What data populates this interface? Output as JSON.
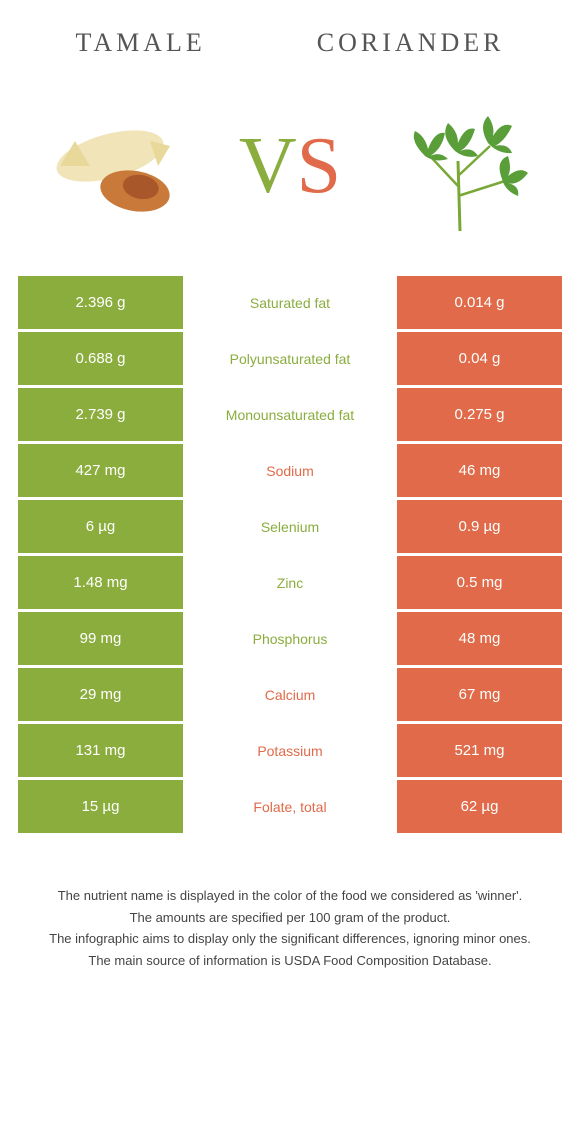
{
  "left_food": "Tamale",
  "right_food": "Coriander",
  "vs": {
    "v": "V",
    "s": "S"
  },
  "colors": {
    "left": "#8aad3e",
    "right": "#e06a49",
    "bg": "#ffffff"
  },
  "rows": [
    {
      "left": "2.396 g",
      "label": "Saturated fat",
      "right": "0.014 g",
      "winner": "left"
    },
    {
      "left": "0.688 g",
      "label": "Polyunsaturated fat",
      "right": "0.04 g",
      "winner": "left"
    },
    {
      "left": "2.739 g",
      "label": "Monounsaturated fat",
      "right": "0.275 g",
      "winner": "left"
    },
    {
      "left": "427 mg",
      "label": "Sodium",
      "right": "46 mg",
      "winner": "right"
    },
    {
      "left": "6 µg",
      "label": "Selenium",
      "right": "0.9 µg",
      "winner": "left"
    },
    {
      "left": "1.48 mg",
      "label": "Zinc",
      "right": "0.5 mg",
      "winner": "left"
    },
    {
      "left": "99 mg",
      "label": "Phosphorus",
      "right": "48 mg",
      "winner": "left"
    },
    {
      "left": "29 mg",
      "label": "Calcium",
      "right": "67 mg",
      "winner": "right"
    },
    {
      "left": "131 mg",
      "label": "Potassium",
      "right": "521 mg",
      "winner": "right"
    },
    {
      "left": "15 µg",
      "label": "Folate, total",
      "right": "62 µg",
      "winner": "right"
    }
  ],
  "footer": [
    "The nutrient name is displayed in the color of the food we considered as 'winner'.",
    "The amounts are specified per 100 gram of the product.",
    "The infographic aims to display only the significant differences, ignoring minor ones.",
    "The main source of information is USDA Food Composition Database."
  ]
}
